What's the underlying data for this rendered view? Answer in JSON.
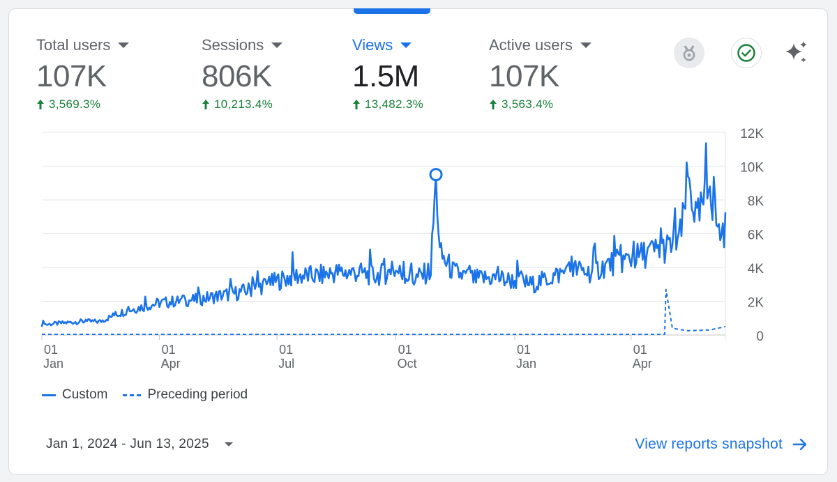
{
  "metrics": [
    {
      "label": "Total users",
      "value": "107K",
      "change": "3,569.3%",
      "active": false
    },
    {
      "label": "Sessions",
      "value": "806K",
      "change": "10,213.4%",
      "active": false
    },
    {
      "label": "Views",
      "value": "1.5M",
      "change": "13,482.3%",
      "active": true
    },
    {
      "label": "Active users",
      "value": "107K",
      "change": "3,563.4%",
      "active": false
    }
  ],
  "icons": [
    "insights-medal-icon",
    "check-circle-icon",
    "sparkle-icon"
  ],
  "colors": {
    "accent": "#1a73e8",
    "positive": "#188038",
    "text": "#3c4043",
    "muted": "#5f6368",
    "grid": "#dadce0"
  },
  "chart_data": {
    "type": "line",
    "y_ticks": [
      "12K",
      "10K",
      "8K",
      "6K",
      "4K",
      "2K",
      "0"
    ],
    "ylim": [
      0,
      12000
    ],
    "x_ticks": [
      {
        "day": "01",
        "month": "Jan"
      },
      {
        "day": "01",
        "month": "Apr"
      },
      {
        "day": "01",
        "month": "Jul"
      },
      {
        "day": "01",
        "month": "Oct"
      },
      {
        "day": "01",
        "month": "Jan"
      },
      {
        "day": "01",
        "month": "Apr"
      }
    ],
    "series": [
      {
        "name": "Custom",
        "style": "solid",
        "x": [
          "2024-01-01",
          "2024-01-15",
          "2024-02-01",
          "2024-02-15",
          "2024-03-01",
          "2024-03-15",
          "2024-04-01",
          "2024-04-15",
          "2024-05-01",
          "2024-05-15",
          "2024-06-01",
          "2024-06-15",
          "2024-07-01",
          "2024-07-15",
          "2024-08-01",
          "2024-08-15",
          "2024-09-01",
          "2024-09-15",
          "2024-10-01",
          "2024-10-15",
          "2024-10-28",
          "2024-11-01",
          "2024-11-04",
          "2024-11-15",
          "2024-12-01",
          "2024-12-15",
          "2025-01-01",
          "2025-01-15",
          "2025-02-01",
          "2025-02-15",
          "2025-03-01",
          "2025-03-15",
          "2025-04-01",
          "2025-04-15",
          "2025-05-01",
          "2025-05-10",
          "2025-05-15",
          "2025-05-22",
          "2025-06-01",
          "2025-06-08",
          "2025-06-13"
        ],
        "values": [
          600,
          700,
          800,
          800,
          1300,
          1600,
          1900,
          2000,
          2100,
          2300,
          2500,
          2800,
          3200,
          3500,
          3500,
          3700,
          3700,
          3500,
          3800,
          3300,
          3800,
          9500,
          4800,
          3700,
          3300,
          3400,
          3200,
          3000,
          3500,
          3900,
          3700,
          4200,
          4500,
          4900,
          5200,
          6000,
          9400,
          6700,
          8800,
          6000,
          6300
        ]
      },
      {
        "name": "Preceding period",
        "style": "dashed",
        "x": [
          "2024-01-01",
          "2025-04-01",
          "2025-04-27",
          "2025-04-28",
          "2025-05-03",
          "2025-05-15",
          "2025-06-01",
          "2025-06-13"
        ],
        "values": [
          40,
          40,
          40,
          2700,
          400,
          250,
          300,
          500
        ]
      }
    ],
    "highlight": {
      "x": "2024-11-01",
      "y": 9500
    }
  },
  "legend": {
    "custom": "Custom",
    "preceding": "Preceding period"
  },
  "date_range": "Jan 1, 2024 - Jun 13, 2025",
  "link": {
    "label": "View reports snapshot"
  }
}
